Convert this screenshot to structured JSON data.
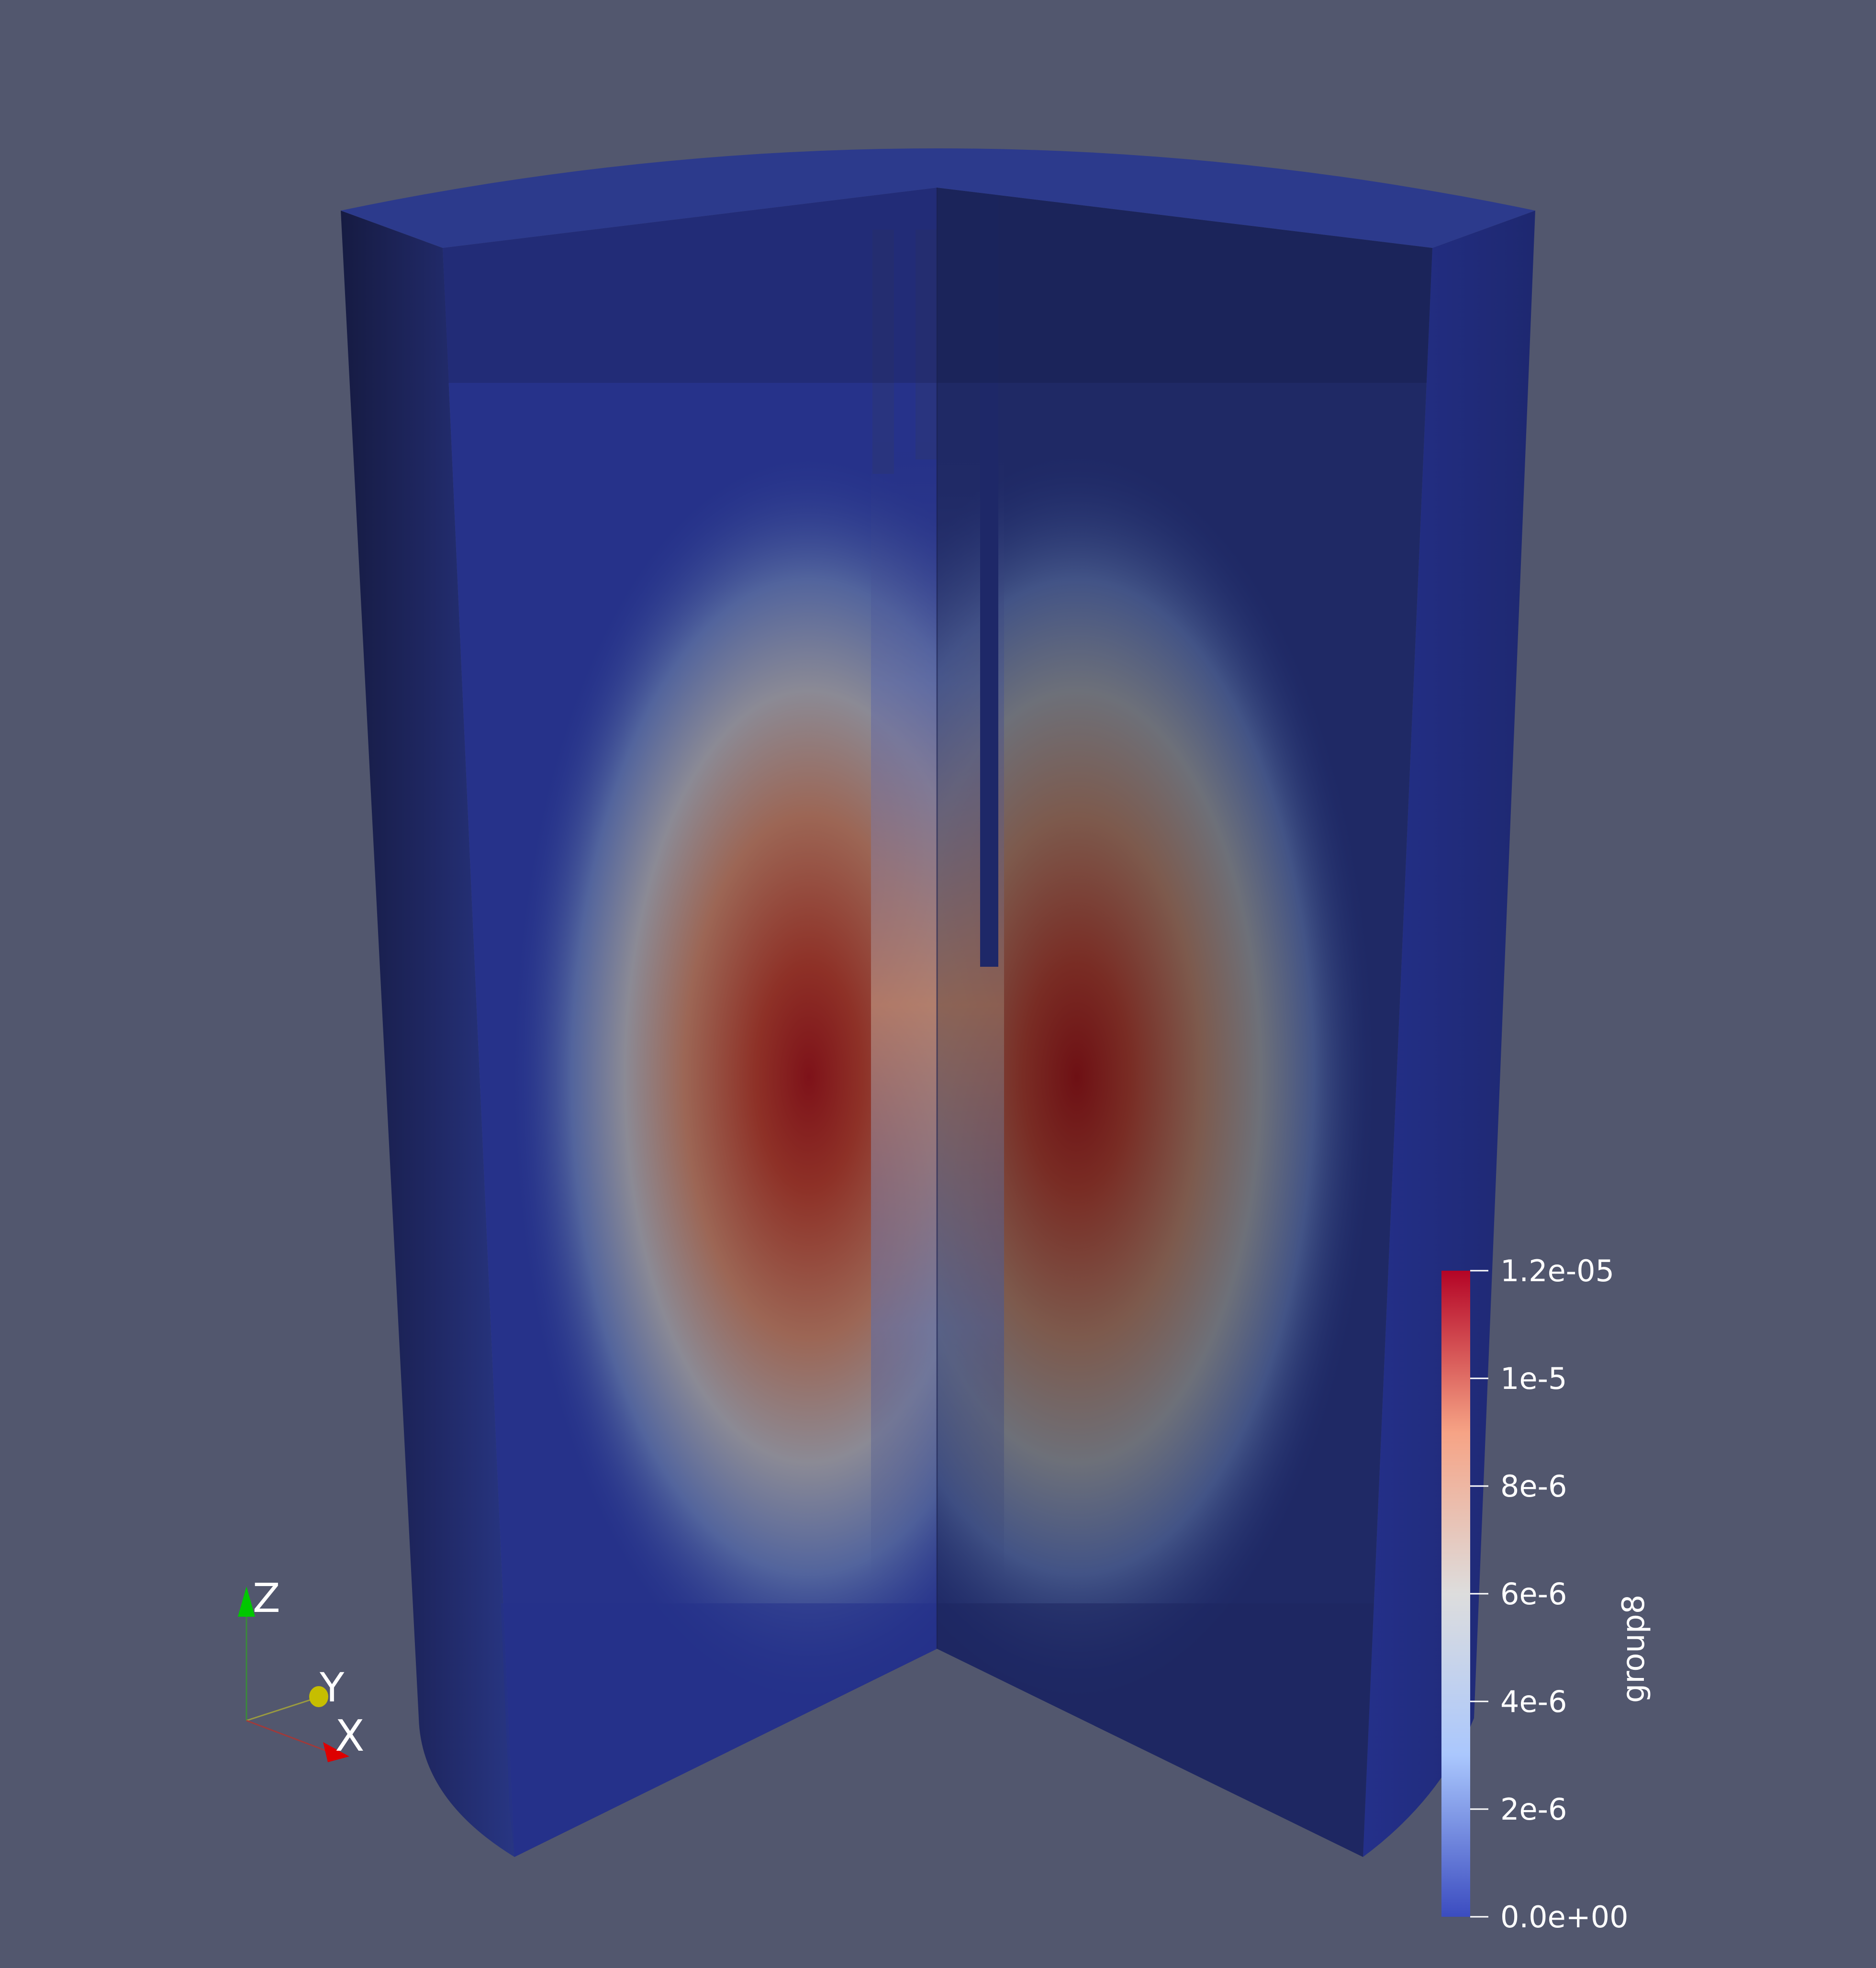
{
  "scalar_bar": {
    "title": "group8",
    "labels": [
      "1.2e-05",
      "1e-5",
      "8e-6",
      "6e-6",
      "4e-6",
      "2e-6",
      "0.0e+00"
    ],
    "label_values": [
      1.2e-05,
      1e-05,
      8e-06,
      6e-06,
      4e-06,
      2e-06,
      0.0
    ],
    "range": [
      0.0,
      1.2e-05
    ],
    "colormap": [
      "#3b4cc0",
      "#aac7fd",
      "#dddddd",
      "#f6a385",
      "#b40426"
    ]
  },
  "orientation_axes": {
    "z_label": "Z",
    "y_label": "Y",
    "x_label": "X",
    "z_color": "#00d000",
    "y_color": "#c8c000",
    "x_color": "#e00000"
  },
  "colors": {
    "background": "#52576e",
    "cylinder_low": "#2a3a8c",
    "cylinder_dark": "#1b2152",
    "field_peak": "#7a1216"
  }
}
